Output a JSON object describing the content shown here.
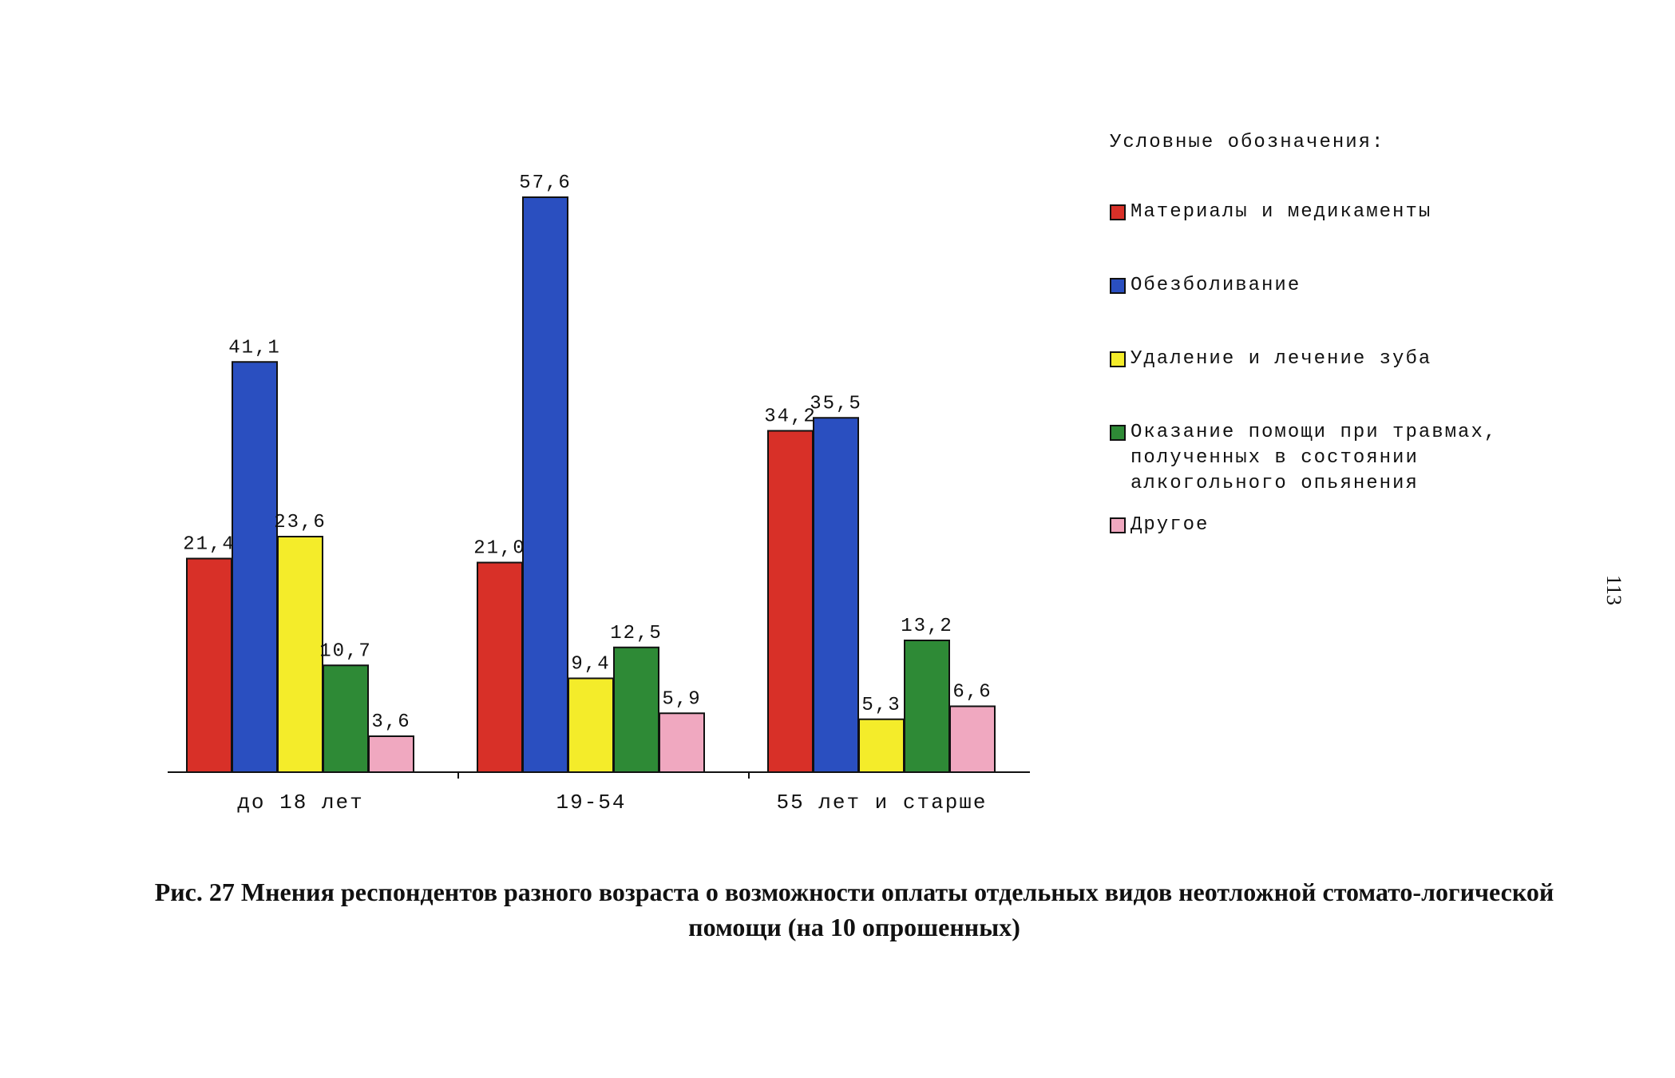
{
  "chart_data": {
    "type": "bar",
    "categories": [
      "до 18 лет",
      "19-54",
      "55 лет и старше"
    ],
    "series": [
      {
        "name": "Материалы и медикаменты",
        "color": "#d83028",
        "values": [
          21.4,
          21.0,
          34.2
        ],
        "labels": [
          "21,4",
          "21,0",
          "34,2"
        ]
      },
      {
        "name": "Обезболивание",
        "color": "#2a4fc0",
        "values": [
          41.1,
          57.6,
          35.5
        ],
        "labels": [
          "41,1",
          "57,6",
          "35,5"
        ]
      },
      {
        "name": "Удаление и лечение зуба",
        "color": "#f4ec2a",
        "values": [
          23.6,
          9.4,
          5.3
        ],
        "labels": [
          "23,6",
          "9,4",
          "5,3"
        ]
      },
      {
        "name": "Оказание помощи при травмах, полученных в состоянии алкогольного опьянения",
        "color": "#2e8a36",
        "values": [
          10.7,
          12.5,
          13.2
        ],
        "labels": [
          "10,7",
          "12,5",
          "13,2"
        ]
      },
      {
        "name": "Другое",
        "color": "#f0a8c0",
        "values": [
          3.6,
          5.9,
          6.6
        ],
        "labels": [
          "3,6",
          "5,9",
          "6,6"
        ]
      }
    ],
    "ylim": [
      0,
      60
    ],
    "legend_title": "Условные обозначения:",
    "legend_position": "right"
  },
  "legend": {
    "title": "Условные обозначения:",
    "items": [
      {
        "label": "Материалы и медикаменты",
        "color": "#d83028"
      },
      {
        "label": "Обезболивание",
        "color": "#2a4fc0"
      },
      {
        "label": "Удаление и лечение зуба",
        "color": "#f4ec2a"
      },
      {
        "label": "Оказание помощи при травмах, полученных в состоянии алкогольного опьянения",
        "color": "#2e8a36"
      },
      {
        "label": "Другое",
        "color": "#f0a8c0"
      }
    ]
  },
  "caption": "Рис. 27 Мнения респондентов разного возраста о возможности оплаты отдельных видов неотложной стомато-логической помощи (на 10 опрошенных)",
  "page_number": "113"
}
